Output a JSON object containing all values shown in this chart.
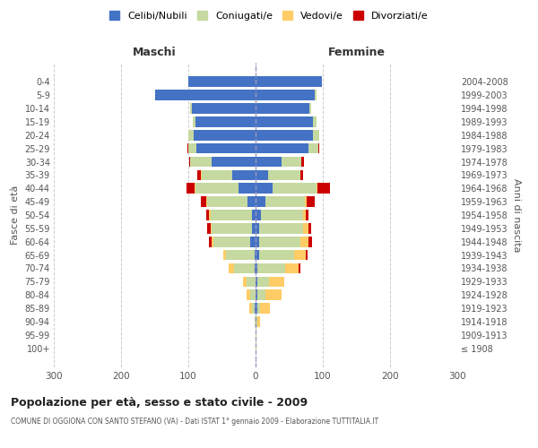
{
  "age_groups": [
    "100+",
    "95-99",
    "90-94",
    "85-89",
    "80-84",
    "75-79",
    "70-74",
    "65-69",
    "60-64",
    "55-59",
    "50-54",
    "45-49",
    "40-44",
    "35-39",
    "30-34",
    "25-29",
    "20-24",
    "15-19",
    "10-14",
    "5-9",
    "0-4"
  ],
  "birth_years": [
    "≤ 1908",
    "1909-1913",
    "1914-1918",
    "1919-1923",
    "1924-1928",
    "1929-1933",
    "1934-1938",
    "1939-1943",
    "1944-1948",
    "1949-1953",
    "1954-1958",
    "1959-1963",
    "1964-1968",
    "1969-1973",
    "1974-1978",
    "1979-1983",
    "1984-1988",
    "1989-1993",
    "1994-1998",
    "1999-2003",
    "2004-2008"
  ],
  "male_celibi": [
    0,
    0,
    0,
    2,
    0,
    0,
    2,
    2,
    8,
    5,
    5,
    12,
    25,
    35,
    65,
    88,
    92,
    90,
    95,
    150,
    100
  ],
  "male_coniugati": [
    0,
    0,
    2,
    4,
    8,
    14,
    30,
    42,
    55,
    60,
    62,
    60,
    65,
    45,
    32,
    12,
    8,
    3,
    2,
    0,
    0
  ],
  "male_vedovi": [
    0,
    0,
    0,
    3,
    6,
    5,
    8,
    4,
    3,
    2,
    2,
    2,
    1,
    1,
    0,
    0,
    0,
    0,
    0,
    0,
    0
  ],
  "male_divorziati": [
    0,
    0,
    0,
    0,
    0,
    0,
    0,
    0,
    4,
    5,
    4,
    8,
    12,
    6,
    2,
    1,
    0,
    0,
    0,
    0,
    0
  ],
  "female_celibi": [
    0,
    0,
    0,
    2,
    2,
    2,
    2,
    5,
    5,
    5,
    8,
    15,
    25,
    18,
    38,
    78,
    85,
    85,
    80,
    88,
    98
  ],
  "female_coniugati": [
    0,
    0,
    2,
    5,
    12,
    18,
    42,
    52,
    62,
    65,
    62,
    58,
    65,
    48,
    30,
    15,
    10,
    5,
    2,
    2,
    0
  ],
  "female_vedovi": [
    1,
    1,
    4,
    14,
    24,
    22,
    20,
    18,
    12,
    8,
    5,
    3,
    2,
    1,
    0,
    0,
    0,
    0,
    0,
    0,
    0
  ],
  "female_divorziati": [
    0,
    0,
    0,
    0,
    0,
    0,
    2,
    2,
    5,
    5,
    4,
    12,
    18,
    4,
    4,
    1,
    0,
    0,
    0,
    0,
    0
  ],
  "colors": {
    "celibi": "#4472C4",
    "coniugati": "#C5D9A0",
    "vedovi": "#FFCC66",
    "divorziati": "#CC0000"
  },
  "xlim": [
    -300,
    300
  ],
  "xticks": [
    -300,
    -200,
    -100,
    0,
    100,
    200,
    300
  ],
  "xticklabels": [
    "300",
    "200",
    "100",
    "0",
    "100",
    "200",
    "300"
  ],
  "title": "Popolazione per età, sesso e stato civile - 2009",
  "subtitle": "COMUNE DI OGGIONA CON SANTO STEFANO (VA) - Dati ISTAT 1° gennaio 2009 - Elaborazione TUTTITALIA.IT",
  "ylabel_left": "Fasce di età",
  "ylabel_right": "Anni di nascita",
  "header_left": "Maschi",
  "header_right": "Femmine",
  "legend_labels": [
    "Celibi/Nubili",
    "Coniugati/e",
    "Vedovi/e",
    "Divorziati/e"
  ],
  "background_color": "#ffffff",
  "grid_color": "#cccccc"
}
